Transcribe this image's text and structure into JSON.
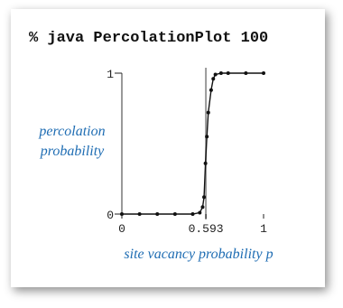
{
  "chart_data": {
    "type": "line",
    "title": "% java PercolationPlot 100",
    "y_label_lines": [
      "percolation",
      "probability"
    ],
    "x_label": "site vacancy probability p",
    "x": [
      0,
      0.125,
      0.25,
      0.375,
      0.5,
      0.55,
      0.57,
      0.58,
      0.59,
      0.6,
      0.61,
      0.63,
      0.645,
      0.66,
      0.7,
      0.75,
      0.875,
      1
    ],
    "series": [
      {
        "color": "#111111",
        "values": [
          0,
          0,
          0,
          0,
          0,
          0.01,
          0.05,
          0.12,
          0.36,
          0.55,
          0.72,
          0.88,
          0.96,
          0.99,
          1,
          1,
          1,
          1
        ]
      }
    ],
    "xlim": [
      0,
      1
    ],
    "ylim": [
      0,
      1
    ],
    "xticks": [
      0,
      0.593,
      1
    ],
    "yticks": [
      0,
      1
    ],
    "reference_x": 0.593
  }
}
